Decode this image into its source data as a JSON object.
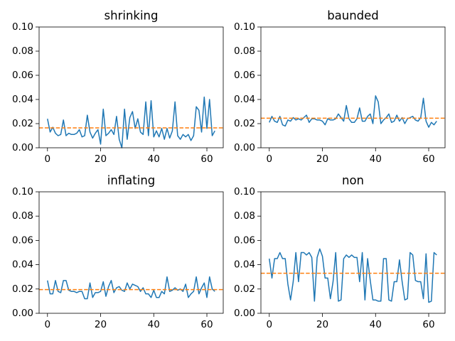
{
  "chart_data": [
    {
      "type": "line",
      "title": "shrinking",
      "x": [
        0,
        1,
        2,
        3,
        4,
        5,
        6,
        7,
        8,
        9,
        10,
        11,
        12,
        13,
        14,
        15,
        16,
        17,
        18,
        19,
        20,
        21,
        22,
        23,
        24,
        25,
        26,
        27,
        28,
        29,
        30,
        31,
        32,
        33,
        34,
        35,
        36,
        37,
        38,
        39,
        40,
        41,
        42,
        43,
        44,
        45,
        46,
        47,
        48,
        49,
        50,
        51,
        52,
        53,
        54,
        55,
        56,
        57,
        58,
        59,
        60,
        61,
        62,
        63
      ],
      "series": [
        {
          "color": "#1f77b4",
          "values": [
            0.024,
            0.013,
            0.017,
            0.012,
            0.01,
            0.011,
            0.023,
            0.01,
            0.012,
            0.011,
            0.011,
            0.012,
            0.015,
            0.009,
            0.01,
            0.027,
            0.013,
            0.008,
            0.012,
            0.015,
            0.003,
            0.032,
            0.01,
            0.012,
            0.015,
            0.011,
            0.026,
            0.007,
            0.0,
            0.032,
            0.007,
            0.025,
            0.03,
            0.016,
            0.024,
            0.013,
            0.011,
            0.038,
            0.01,
            0.039,
            0.009,
            0.014,
            0.009,
            0.016,
            0.007,
            0.016,
            0.008,
            0.014,
            0.038,
            0.01,
            0.007,
            0.011,
            0.009,
            0.011,
            0.006,
            0.01,
            0.034,
            0.031,
            0.013,
            0.042,
            0.016,
            0.04,
            0.01,
            0.014
          ]
        }
      ],
      "reference_line": {
        "value": 0.0165,
        "color": "#ff7f0e",
        "style": "dashed"
      },
      "xlim": [
        -3.15,
        66.15
      ],
      "xticks": [
        0,
        20,
        40,
        60
      ],
      "ylim": [
        0,
        0.1
      ],
      "yticks": [
        {
          "value": 0,
          "label": "0.00"
        },
        {
          "value": 0.02,
          "label": "0.02"
        },
        {
          "value": 0.04,
          "label": "0.04"
        },
        {
          "value": 0.06,
          "label": "0.06"
        },
        {
          "value": 0.08,
          "label": "0.08"
        },
        {
          "value": 0.1,
          "label": "0.10"
        }
      ]
    },
    {
      "type": "line",
      "title": "baunded",
      "x": [
        0,
        1,
        2,
        3,
        4,
        5,
        6,
        7,
        8,
        9,
        10,
        11,
        12,
        13,
        14,
        15,
        16,
        17,
        18,
        19,
        20,
        21,
        22,
        23,
        24,
        25,
        26,
        27,
        28,
        29,
        30,
        31,
        32,
        33,
        34,
        35,
        36,
        37,
        38,
        39,
        40,
        41,
        42,
        43,
        44,
        45,
        46,
        47,
        48,
        49,
        50,
        51,
        52,
        53,
        54,
        55,
        56,
        57,
        58,
        59,
        60,
        61,
        62,
        63
      ],
      "series": [
        {
          "color": "#1f77b4",
          "values": [
            0.021,
            0.026,
            0.022,
            0.021,
            0.026,
            0.019,
            0.018,
            0.023,
            0.022,
            0.025,
            0.023,
            0.024,
            0.023,
            0.025,
            0.027,
            0.021,
            0.024,
            0.024,
            0.023,
            0.023,
            0.022,
            0.019,
            0.024,
            0.023,
            0.023,
            0.024,
            0.028,
            0.025,
            0.022,
            0.035,
            0.024,
            0.021,
            0.021,
            0.024,
            0.033,
            0.022,
            0.022,
            0.026,
            0.028,
            0.02,
            0.043,
            0.038,
            0.02,
            0.023,
            0.025,
            0.028,
            0.021,
            0.022,
            0.027,
            0.022,
            0.025,
            0.02,
            0.024,
            0.025,
            0.026,
            0.023,
            0.022,
            0.025,
            0.041,
            0.022,
            0.017,
            0.021,
            0.019,
            0.022
          ]
        }
      ],
      "reference_line": {
        "value": 0.0245,
        "color": "#ff7f0e",
        "style": "dashed"
      },
      "xlim": [
        -3.15,
        66.15
      ],
      "xticks": [
        0,
        20,
        40,
        60
      ],
      "ylim": [
        0,
        0.1
      ],
      "yticks": [
        {
          "value": 0,
          "label": "0.00"
        },
        {
          "value": 0.02,
          "label": "0.02"
        },
        {
          "value": 0.04,
          "label": "0.04"
        },
        {
          "value": 0.06,
          "label": "0.06"
        },
        {
          "value": 0.08,
          "label": "0.08"
        },
        {
          "value": 0.1,
          "label": "0.10"
        }
      ]
    },
    {
      "type": "line",
      "title": "inflating",
      "x": [
        0,
        1,
        2,
        3,
        4,
        5,
        6,
        7,
        8,
        9,
        10,
        11,
        12,
        13,
        14,
        15,
        16,
        17,
        18,
        19,
        20,
        21,
        22,
        23,
        24,
        25,
        26,
        27,
        28,
        29,
        30,
        31,
        32,
        33,
        34,
        35,
        36,
        37,
        38,
        39,
        40,
        41,
        42,
        43,
        44,
        45,
        46,
        47,
        48,
        49,
        50,
        51,
        52,
        53,
        54,
        55,
        56,
        57,
        58,
        59,
        60,
        61,
        62,
        63
      ],
      "series": [
        {
          "color": "#1f77b4",
          "values": [
            0.027,
            0.016,
            0.016,
            0.027,
            0.018,
            0.017,
            0.027,
            0.027,
            0.019,
            0.018,
            0.018,
            0.017,
            0.018,
            0.018,
            0.012,
            0.012,
            0.025,
            0.013,
            0.017,
            0.017,
            0.018,
            0.026,
            0.014,
            0.022,
            0.027,
            0.017,
            0.021,
            0.022,
            0.019,
            0.018,
            0.025,
            0.02,
            0.024,
            0.023,
            0.022,
            0.018,
            0.021,
            0.016,
            0.016,
            0.013,
            0.019,
            0.013,
            0.013,
            0.018,
            0.016,
            0.03,
            0.018,
            0.019,
            0.021,
            0.019,
            0.02,
            0.018,
            0.024,
            0.013,
            0.016,
            0.018,
            0.03,
            0.016,
            0.021,
            0.025,
            0.013,
            0.03,
            0.02,
            0.018
          ]
        }
      ],
      "reference_line": {
        "value": 0.0195,
        "color": "#ff7f0e",
        "style": "dashed"
      },
      "xlim": [
        -3.15,
        66.15
      ],
      "xticks": [
        0,
        20,
        40,
        60
      ],
      "ylim": [
        0,
        0.1
      ],
      "yticks": [
        {
          "value": 0,
          "label": "0.00"
        },
        {
          "value": 0.02,
          "label": "0.02"
        },
        {
          "value": 0.04,
          "label": "0.04"
        },
        {
          "value": 0.06,
          "label": "0.06"
        },
        {
          "value": 0.08,
          "label": "0.08"
        },
        {
          "value": 0.1,
          "label": "0.10"
        }
      ]
    },
    {
      "type": "line",
      "title": "non",
      "x": [
        0,
        1,
        2,
        3,
        4,
        5,
        6,
        7,
        8,
        9,
        10,
        11,
        12,
        13,
        14,
        15,
        16,
        17,
        18,
        19,
        20,
        21,
        22,
        23,
        24,
        25,
        26,
        27,
        28,
        29,
        30,
        31,
        32,
        33,
        34,
        35,
        36,
        37,
        38,
        39,
        40,
        41,
        42,
        43,
        44,
        45,
        46,
        47,
        48,
        49,
        50,
        51,
        52,
        53,
        54,
        55,
        56,
        57,
        58,
        59,
        60,
        61,
        62,
        63
      ],
      "series": [
        {
          "color": "#1f77b4",
          "values": [
            0.045,
            0.029,
            0.045,
            0.045,
            0.05,
            0.045,
            0.045,
            0.024,
            0.011,
            0.026,
            0.05,
            0.026,
            0.05,
            0.05,
            0.048,
            0.05,
            0.046,
            0.01,
            0.046,
            0.053,
            0.047,
            0.029,
            0.029,
            0.012,
            0.026,
            0.05,
            0.01,
            0.011,
            0.045,
            0.048,
            0.046,
            0.048,
            0.046,
            0.046,
            0.026,
            0.05,
            0.011,
            0.045,
            0.027,
            0.011,
            0.011,
            0.01,
            0.01,
            0.045,
            0.045,
            0.011,
            0.01,
            0.026,
            0.026,
            0.044,
            0.026,
            0.011,
            0.012,
            0.05,
            0.048,
            0.027,
            0.026,
            0.026,
            0.012,
            0.049,
            0.009,
            0.01,
            0.05,
            0.048
          ]
        }
      ],
      "reference_line": {
        "value": 0.033,
        "color": "#ff7f0e",
        "style": "dashed"
      },
      "xlim": [
        -3.15,
        66.15
      ],
      "xticks": [
        0,
        20,
        40,
        60
      ],
      "ylim": [
        0,
        0.1
      ],
      "yticks": [
        {
          "value": 0,
          "label": "0.00"
        },
        {
          "value": 0.02,
          "label": "0.02"
        },
        {
          "value": 0.04,
          "label": "0.04"
        },
        {
          "value": 0.06,
          "label": "0.06"
        },
        {
          "value": 0.08,
          "label": "0.08"
        },
        {
          "value": 0.1,
          "label": "0.10"
        }
      ]
    }
  ]
}
